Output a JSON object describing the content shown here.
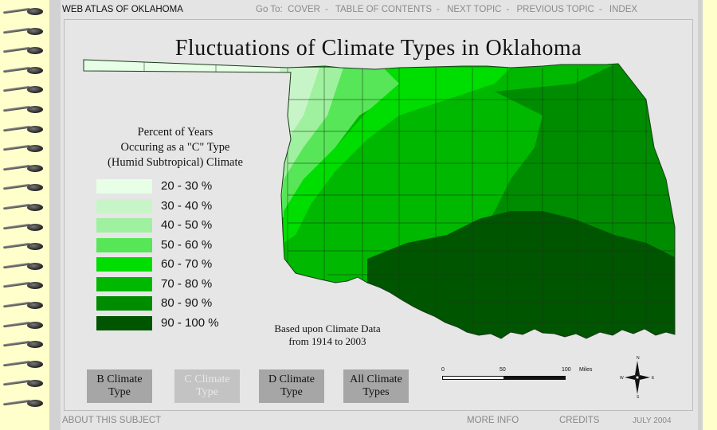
{
  "header": {
    "site_title": "WEB ATLAS OF OKLAHOMA",
    "goto_label": "Go To:",
    "nav": [
      "COVER",
      "TABLE OF CONTENTS",
      "NEXT TOPIC",
      "PREVIOUS TOPIC",
      "INDEX"
    ]
  },
  "main": {
    "title": "Fluctuations of Climate Types in Oklahoma",
    "legend_title_lines": [
      "Percent of Years",
      "Occuring as a \"C\" Type",
      "(Humid Subtropical) Climate"
    ],
    "legend": [
      {
        "label": "20 - 30 %",
        "color": "#e6ffe6"
      },
      {
        "label": "30 - 40 %",
        "color": "#c8f5c8"
      },
      {
        "label": "40 - 50 %",
        "color": "#9ff09f"
      },
      {
        "label": "50 - 60 %",
        "color": "#57e657"
      },
      {
        "label": "60 - 70 %",
        "color": "#00dd00"
      },
      {
        "label": "70 - 80 %",
        "color": "#00b800"
      },
      {
        "label": "80 - 90 %",
        "color": "#008c00"
      },
      {
        "label": "90 - 100 %",
        "color": "#005500"
      }
    ],
    "note_lines": [
      "Based upon Climate Data",
      "from 1914 to 2003"
    ]
  },
  "buttons": [
    {
      "lines": [
        "B Climate",
        "Type"
      ],
      "enabled": true
    },
    {
      "lines": [
        "C Climate",
        "Type"
      ],
      "enabled": false
    },
    {
      "lines": [
        "D Climate",
        "Type"
      ],
      "enabled": true
    },
    {
      "lines": [
        "All Climate",
        "Types"
      ],
      "enabled": true
    }
  ],
  "scale": {
    "ticks": [
      "0",
      "50",
      "100"
    ],
    "unit": "Miles"
  },
  "compass": {
    "n": "N",
    "s": "S",
    "e": "E",
    "w": "W"
  },
  "footer": {
    "about": "ABOUT THIS SUBJECT",
    "more_info": "MORE INFO",
    "credits": "CREDITS",
    "date": "JULY 2004"
  }
}
